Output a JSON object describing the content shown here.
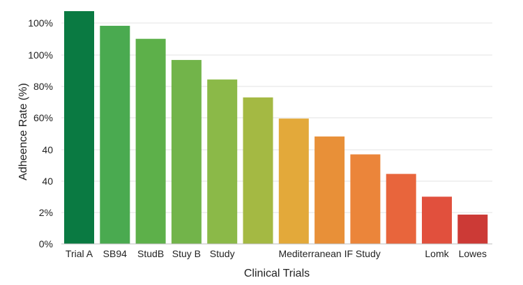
{
  "chart_data": {
    "type": "bar",
    "title": "",
    "xlabel": "Clinical Trials",
    "ylabel": "Adheence Rate (%)",
    "y_tick_labels": [
      "0%",
      "2%",
      "40",
      "40",
      "60%",
      "80%",
      "100%",
      "100%"
    ],
    "ylim": [
      0,
      140
    ],
    "grid": true,
    "legend": "none",
    "categories": [
      "Trial A",
      "SB94",
      "StudB",
      "Stuy B",
      "Study",
      "",
      "Mediterranean IF Study",
      "",
      "",
      "",
      "Lomk",
      "Lowes"
    ],
    "x_tick_labels": [
      {
        "text": "Trial A",
        "slot": 0
      },
      {
        "text": "SB94",
        "slot": 1
      },
      {
        "text": "StudB",
        "slot": 2
      },
      {
        "text": "Stuy B",
        "slot": 3
      },
      {
        "text": "Study",
        "slot": 4
      },
      {
        "text": "Mediterranean IF Study",
        "slot": 7
      },
      {
        "text": "Lomk",
        "slot": 10
      },
      {
        "text": "Lowes",
        "slot": 11
      }
    ],
    "values": [
      143,
      134,
      126,
      113,
      101,
      90,
      77,
      66,
      55,
      43,
      29,
      18
    ],
    "colors": [
      "#0a7a42",
      "#4aaa50",
      "#5db04a",
      "#72b44a",
      "#8bb948",
      "#a4b943",
      "#e3a93a",
      "#e89038",
      "#eb853a",
      "#e8653c",
      "#e1503d",
      "#cc3a36"
    ]
  }
}
